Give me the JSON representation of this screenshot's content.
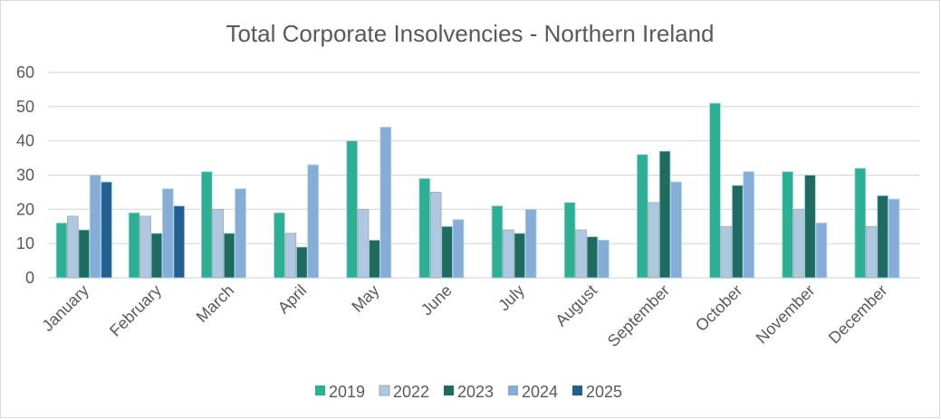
{
  "chart_data": {
    "type": "bar",
    "title": "Total Corporate Insolvencies - Northern Ireland",
    "xlabel": "",
    "ylabel": "",
    "ylim": [
      0,
      60
    ],
    "yticks": [
      0,
      10,
      20,
      30,
      40,
      50,
      60
    ],
    "grid": true,
    "legend_position": "bottom",
    "categories": [
      "January",
      "February",
      "March",
      "April",
      "May",
      "June",
      "July",
      "August",
      "September",
      "October",
      "November",
      "December"
    ],
    "series": [
      {
        "name": "2019",
        "color": "#2BB093",
        "values": [
          16,
          19,
          31,
          19,
          40,
          29,
          21,
          22,
          36,
          51,
          31,
          32
        ]
      },
      {
        "name": "2022",
        "color": "#AFC8E2",
        "values": [
          18,
          18,
          20,
          13,
          20,
          25,
          14,
          14,
          22,
          15,
          20,
          15
        ]
      },
      {
        "name": "2023",
        "color": "#1E6B5F",
        "values": [
          14,
          13,
          13,
          9,
          11,
          15,
          13,
          12,
          37,
          27,
          30,
          24
        ]
      },
      {
        "name": "2024",
        "color": "#86ADD7",
        "values": [
          30,
          26,
          26,
          33,
          44,
          17,
          20,
          11,
          28,
          31,
          16,
          23
        ]
      },
      {
        "name": "2025",
        "color": "#245F92",
        "values": [
          28,
          21,
          null,
          null,
          null,
          null,
          null,
          null,
          null,
          null,
          null,
          null
        ]
      }
    ]
  }
}
